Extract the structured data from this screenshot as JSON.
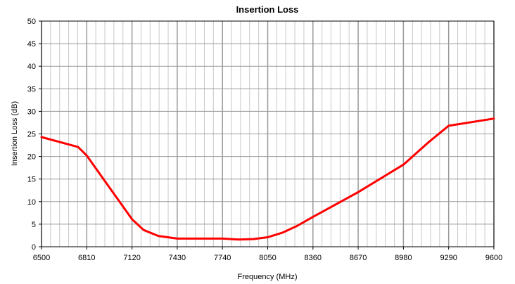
{
  "chart_data": {
    "type": "line",
    "title": "Insertion Loss",
    "xlabel": "Frequency (MHz)",
    "ylabel": "Insertion Loss (dB)",
    "xlim": [
      6500,
      9600
    ],
    "ylim": [
      0,
      50
    ],
    "x_ticks": [
      6500,
      6810,
      7120,
      7430,
      7740,
      8050,
      8360,
      8670,
      8980,
      9290,
      9600
    ],
    "y_ticks": [
      0,
      5,
      10,
      15,
      20,
      25,
      30,
      35,
      40,
      45,
      50
    ],
    "grid": true,
    "legend": "none",
    "series_color": "#ff0000",
    "series": [
      {
        "x": [
          6500,
          6750,
          6810,
          7120,
          7200,
          7300,
          7430,
          7740,
          7850,
          7950,
          8050,
          8150,
          8250,
          8360,
          8670,
          8980,
          9150,
          9290,
          9600
        ],
        "y": [
          24.3,
          22.1,
          20.2,
          6.1,
          3.7,
          2.4,
          1.8,
          1.8,
          1.6,
          1.7,
          2.1,
          3.1,
          4.6,
          6.6,
          12.1,
          18.2,
          23.1,
          26.8,
          28.4
        ]
      }
    ]
  }
}
